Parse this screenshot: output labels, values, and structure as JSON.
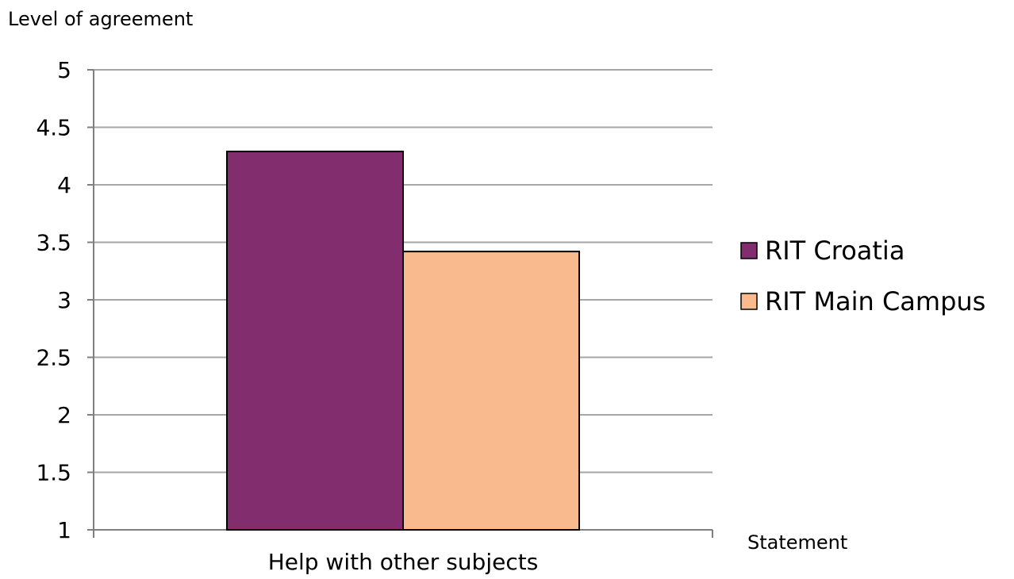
{
  "chart_data": {
    "type": "bar",
    "ylabel": "Level of agreement",
    "xlabel": "Statement",
    "categories": [
      "Help with other subjects"
    ],
    "series": [
      {
        "name": "RIT Croatia",
        "values": [
          4.29
        ],
        "color": "#822D6E"
      },
      {
        "name": "RIT Main Campus",
        "values": [
          3.42
        ],
        "color": "#F9BB8D"
      }
    ],
    "ylim": [
      1,
      5
    ],
    "yticks": [
      "1",
      "1.5",
      "2",
      "2.5",
      "3",
      "3.5",
      "4",
      "4.5",
      "5"
    ],
    "grid": true,
    "legend_position": "right"
  }
}
